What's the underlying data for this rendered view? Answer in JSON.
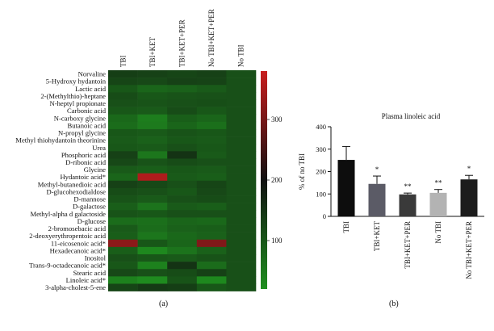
{
  "panel_labels": {
    "a": "(a)",
    "b": "(b)"
  },
  "chart_data": [
    {
      "type": "heatmap",
      "columns": [
        "TBI",
        "TBI+KET",
        "TBI+KET+PER",
        "No TBI+KET+PER",
        "No TBI"
      ],
      "rows": [
        "Norvaline",
        "5-Hydroxy hydantoin",
        "Lactic acid",
        "2-(Methylthio)-heptane",
        "N-heptyl propionate",
        "Carbonic acid",
        "N-carboxy glycine",
        "Butanoic acid",
        "N-propyl glycine",
        "Methyl thiohydantoin theorinine",
        "Urea",
        "Phosphoric acid",
        "D-ribonic acid",
        "Glycine",
        "Hydantoic acid*",
        "Methyl-butanedioic acid",
        "D-glucohexodialdose",
        "D-mannose",
        "D-galactose",
        "Methyl-alpha d galactoside",
        "D-glucose",
        "2-bromosebacic acid",
        "2-deoxyerythropentoic acid",
        "11-eicosenoic acid*",
        "Hexadecanoic acid*",
        "Inositol",
        "Trans-9-octadecanoic acid*",
        "Stearic acid",
        "Linoleic acid*",
        "3-alpha-cholest-5-ene"
      ],
      "values": [
        [
          135,
          130,
          125,
          130,
          110
        ],
        [
          125,
          120,
          130,
          128,
          110
        ],
        [
          100,
          80,
          85,
          95,
          110
        ],
        [
          115,
          100,
          105,
          108,
          110
        ],
        [
          110,
          105,
          110,
          112,
          110
        ],
        [
          100,
          95,
          115,
          100,
          110
        ],
        [
          75,
          45,
          90,
          80,
          110
        ],
        [
          70,
          50,
          80,
          65,
          110
        ],
        [
          100,
          95,
          105,
          100,
          110
        ],
        [
          95,
          85,
          100,
          95,
          110
        ],
        [
          100,
          95,
          110,
          100,
          110
        ],
        [
          130,
          55,
          150,
          95,
          110
        ],
        [
          120,
          105,
          115,
          110,
          110
        ],
        [
          95,
          90,
          100,
          95,
          110
        ],
        [
          80,
          355,
          95,
          90,
          110
        ],
        [
          130,
          120,
          110,
          125,
          110
        ],
        [
          115,
          110,
          100,
          120,
          110
        ],
        [
          105,
          95,
          110,
          115,
          110
        ],
        [
          90,
          60,
          95,
          90,
          110
        ],
        [
          105,
          100,
          110,
          110,
          110
        ],
        [
          70,
          65,
          80,
          75,
          110
        ],
        [
          95,
          70,
          85,
          90,
          110
        ],
        [
          90,
          55,
          75,
          85,
          110
        ],
        [
          320,
          100,
          80,
          310,
          110
        ],
        [
          90,
          30,
          60,
          85,
          110
        ],
        [
          110,
          100,
          95,
          105,
          110
        ],
        [
          100,
          40,
          150,
          70,
          110
        ],
        [
          120,
          110,
          115,
          130,
          110
        ],
        [
          40,
          25,
          105,
          30,
          110
        ],
        [
          125,
          140,
          135,
          100,
          110
        ]
      ],
      "colorbar": {
        "ticks": [
          100,
          200,
          300
        ],
        "range": [
          20,
          380
        ],
        "low_color": "#1f8f1f",
        "mid_color": "#101010",
        "high_color": "#c81e1e"
      }
    },
    {
      "type": "bar",
      "title": "Plasma linoleic acid",
      "ylabel": "% of no TBI",
      "ylim": [
        0,
        400
      ],
      "yticks": [
        0,
        100,
        200,
        300,
        400
      ],
      "categories": [
        "TBI",
        "TBI+KET",
        "TBI+KET+PER",
        "No TBI",
        "No TBI+KET+PER"
      ],
      "values": [
        252,
        145,
        98,
        105,
        165
      ],
      "errors": [
        60,
        35,
        6,
        15,
        18
      ],
      "bar_colors": [
        "#0d0d0d",
        "#5b5b66",
        "#3a3a3a",
        "#b3b3b3",
        "#1c1c1c"
      ],
      "annotations": [
        "",
        "*",
        "**",
        "**",
        "*"
      ]
    }
  ]
}
